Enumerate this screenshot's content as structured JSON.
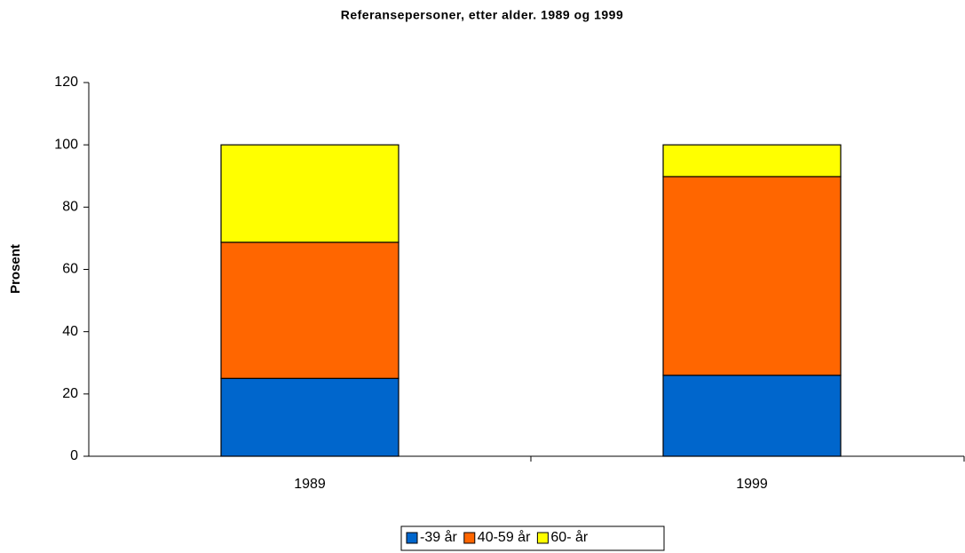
{
  "chart_data": {
    "type": "stacked_bar",
    "title": "Referansepersoner, etter alder. 1989 og 1999",
    "y_label": "Prosent",
    "categories": [
      "1989",
      "1999"
    ],
    "series": [
      {
        "name": "-39 år",
        "color": "#0066cc",
        "values": [
          25,
          26
        ]
      },
      {
        "name": "40-59 år",
        "color": "#ff6600",
        "values": [
          43.7,
          63.8
        ]
      },
      {
        "name": "60- år",
        "color": "#ffff00",
        "values": [
          31.3,
          10.2
        ]
      }
    ],
    "ylim": [
      0,
      120
    ],
    "yticks": [
      0,
      20,
      40,
      60,
      80,
      100,
      120
    ],
    "grid": false,
    "legend": "bottom"
  }
}
